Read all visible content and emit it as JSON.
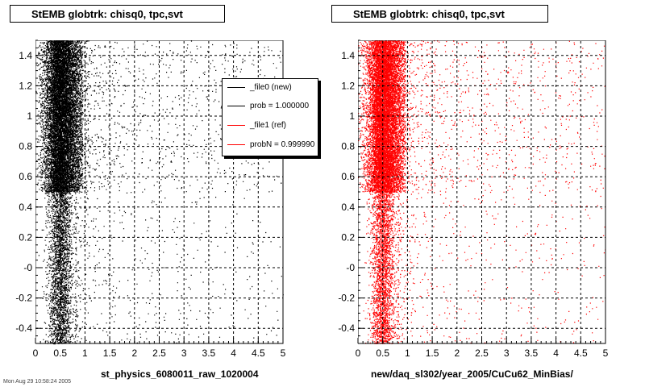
{
  "chart_data": [
    {
      "type": "scatter",
      "title": "StEMB globtrk: chisq0, tpc,svt",
      "xlabel": "st_physics_6080011_raw_1020004",
      "ylabel": "",
      "xlim": [
        0,
        5
      ],
      "ylim": [
        -0.5,
        1.5
      ],
      "xticks": [
        "0",
        "0.5",
        "1",
        "1.5",
        "2",
        "2.5",
        "3",
        "3.5",
        "4",
        "4.5",
        "5"
      ],
      "yticks": [
        "-0.4",
        "-0.2",
        "-0",
        "0.2",
        "0.4",
        "0.6",
        "0.8",
        "1",
        "1.2",
        "1.4"
      ],
      "grid": true,
      "marker_color": "#000000",
      "point_cloud": {
        "note_x_core": 0.5,
        "dense_band_y": [
          0.5,
          1.5
        ],
        "sparse_band_y": [
          -0.5,
          0.5
        ]
      },
      "legend": {
        "placement": "top-right",
        "entries": [
          {
            "label": "_file0 (new)",
            "color": "#000000"
          },
          {
            "label": "prob = 1.000000",
            "color": "#000000"
          },
          {
            "label": "_file1 (ref)",
            "color": "#ff0000"
          },
          {
            "label": "probN = 0.999990",
            "color": "#ff0000"
          }
        ]
      }
    },
    {
      "type": "scatter",
      "title": "StEMB globtrk: chisq0, tpc,svt",
      "xlabel": "new/daq_sl302/year_2005/CuCu62_MinBias/",
      "ylabel": "",
      "xlim": [
        0,
        5
      ],
      "ylim": [
        -0.5,
        1.5
      ],
      "xticks": [
        "0",
        "0.5",
        "1",
        "1.5",
        "2",
        "2.5",
        "3",
        "3.5",
        "4",
        "4.5",
        "5"
      ],
      "yticks": [
        "-0.4",
        "-0.2",
        "-0",
        "0.2",
        "0.4",
        "0.6",
        "0.8",
        "1",
        "1.2",
        "1.4"
      ],
      "grid": true,
      "marker_color": "#ff0000",
      "point_cloud": {
        "note_x_core": 0.5,
        "dense_band_y": [
          0.5,
          1.5
        ],
        "sparse_band_y": [
          -0.5,
          0.5
        ]
      }
    }
  ],
  "footer": "Mon Aug 29 10:58:24 2005"
}
